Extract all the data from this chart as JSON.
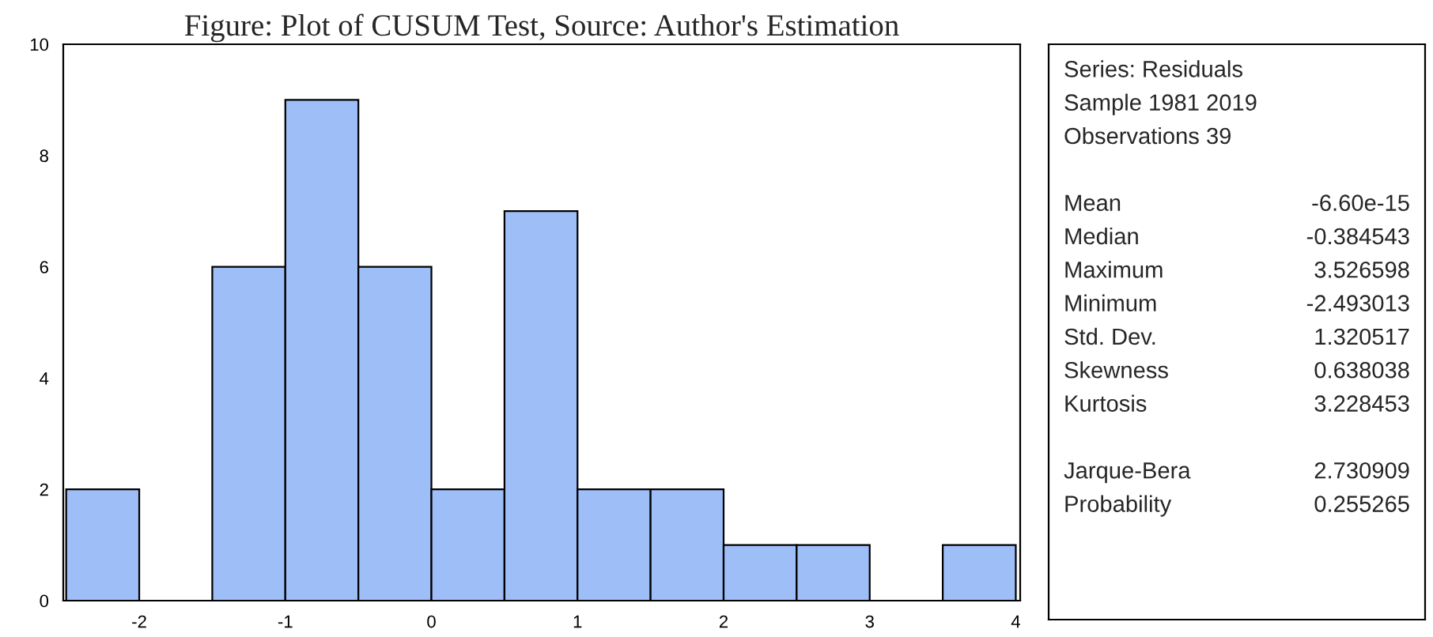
{
  "chart_data": {
    "type": "histogram",
    "title": "Figure: Plot of CUSUM Test, Source: Author's Estimation",
    "bins": [
      -2.5,
      -2.0,
      -1.5,
      -1.0,
      -0.5,
      0.0,
      0.5,
      1.0,
      1.5,
      2.0,
      2.5,
      3.0,
      3.5,
      4.0
    ],
    "values": [
      2,
      0,
      6,
      9,
      6,
      2,
      7,
      2,
      2,
      1,
      1,
      0,
      1
    ],
    "color": "#9ebef7",
    "xlim": [
      -2.52,
      4.03
    ],
    "xticks": [
      -2,
      -1,
      0,
      1,
      2,
      3,
      4
    ],
    "ylim": [
      0,
      10
    ],
    "yticks": [
      0,
      2,
      4,
      6,
      8,
      10
    ],
    "grid": false,
    "annotations": [
      "Series: Residuals",
      "Sample 1981 2019",
      "Observations 39",
      "Mean",
      "-6.60e-15",
      "Median",
      "-0.384543",
      "Maximum",
      "3.526598",
      "Minimum",
      "-2.493013",
      "Std. Dev.",
      "1.320517",
      "Skewness",
      "0.638038",
      "Kurtosis",
      "3.228453",
      "Jarque-Bera",
      "2.730909",
      "Probability",
      "0.255265"
    ]
  }
}
